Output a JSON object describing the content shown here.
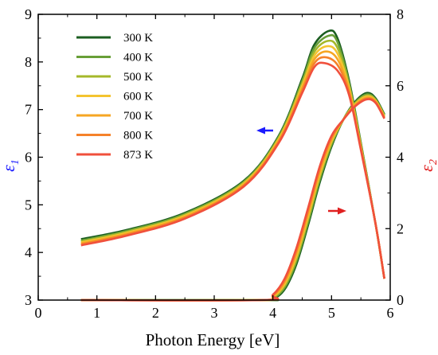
{
  "chart_data": {
    "type": "line",
    "xlabel": "Photon Energy [eV]",
    "ylabel_left": "ε1",
    "ylabel_right": "ε2",
    "ylabel_left_color": "#1a1aff",
    "ylabel_right_color": "#e02020",
    "xlim": [
      0,
      6
    ],
    "ylim_left": [
      3,
      9
    ],
    "ylim_right": [
      0,
      8
    ],
    "xticks": [
      "0",
      "1",
      "2",
      "3",
      "4",
      "5",
      "6"
    ],
    "yticks_left": [
      "3",
      "4",
      "5",
      "6",
      "7",
      "8",
      "9"
    ],
    "yticks_right": [
      "0",
      "2",
      "4",
      "6",
      "8"
    ],
    "grid": false,
    "legend_position": "top-left",
    "left_arrow_color": "#1a1aff",
    "right_arrow_color": "#e02020",
    "series": [
      {
        "name": "300 K",
        "color": "#1b5e20",
        "eps1": {
          "x": [
            0.73,
            1.5,
            2.5,
            3.5,
            4.1,
            4.5,
            4.7,
            4.95,
            5.1,
            5.3,
            5.5,
            5.75,
            5.9
          ],
          "y": [
            4.28,
            4.47,
            4.83,
            5.5,
            6.45,
            7.65,
            8.35,
            8.65,
            8.5,
            7.6,
            6.3,
            4.6,
            3.45
          ]
        },
        "eps2": {
          "x": [
            0.73,
            3.8,
            4.0,
            4.2,
            4.4,
            4.6,
            4.8,
            5.0,
            5.2,
            5.4,
            5.6,
            5.75,
            5.9
          ],
          "y": [
            0.0,
            0.0,
            0.03,
            0.3,
            1.0,
            2.1,
            3.3,
            4.3,
            5.05,
            5.55,
            5.8,
            5.65,
            5.2
          ]
        }
      },
      {
        "name": "400 K",
        "color": "#689f38",
        "eps1": {
          "x": [
            0.73,
            1.5,
            2.5,
            3.5,
            4.1,
            4.5,
            4.7,
            4.95,
            5.1,
            5.3,
            5.5,
            5.75,
            5.9
          ],
          "y": [
            4.25,
            4.45,
            4.81,
            5.48,
            6.43,
            7.6,
            8.28,
            8.55,
            8.42,
            7.55,
            6.28,
            4.6,
            3.45
          ]
        },
        "eps2": {
          "x": [
            0.73,
            3.8,
            4.0,
            4.2,
            4.4,
            4.6,
            4.8,
            5.0,
            5.2,
            5.4,
            5.6,
            5.75,
            5.9
          ],
          "y": [
            0.0,
            0.0,
            0.05,
            0.35,
            1.08,
            2.18,
            3.38,
            4.35,
            5.05,
            5.52,
            5.76,
            5.62,
            5.18
          ]
        }
      },
      {
        "name": "500 K",
        "color": "#a5b82a",
        "eps1": {
          "x": [
            0.73,
            1.5,
            2.5,
            3.5,
            4.1,
            4.5,
            4.7,
            4.93,
            5.1,
            5.3,
            5.5,
            5.75,
            5.9
          ],
          "y": [
            4.23,
            4.43,
            4.79,
            5.46,
            6.4,
            7.55,
            8.2,
            8.44,
            8.3,
            7.5,
            6.25,
            4.6,
            3.45
          ]
        },
        "eps2": {
          "x": [
            0.73,
            3.8,
            4.0,
            4.2,
            4.4,
            4.6,
            4.8,
            5.0,
            5.2,
            5.4,
            5.6,
            5.75,
            5.9
          ],
          "y": [
            0.0,
            0.0,
            0.07,
            0.4,
            1.15,
            2.26,
            3.45,
            4.4,
            5.05,
            5.5,
            5.73,
            5.6,
            5.16
          ]
        }
      },
      {
        "name": "600 K",
        "color": "#f4c430",
        "eps1": {
          "x": [
            0.73,
            1.5,
            2.5,
            3.5,
            4.1,
            4.5,
            4.7,
            4.92,
            5.1,
            5.3,
            5.5,
            5.75,
            5.9
          ],
          "y": [
            4.21,
            4.41,
            4.77,
            5.44,
            6.38,
            7.5,
            8.12,
            8.33,
            8.18,
            7.45,
            6.22,
            4.6,
            3.45
          ]
        },
        "eps2": {
          "x": [
            0.73,
            3.8,
            4.0,
            4.2,
            4.4,
            4.6,
            4.8,
            5.0,
            5.2,
            5.4,
            5.6,
            5.75,
            5.9
          ],
          "y": [
            0.0,
            0.0,
            0.09,
            0.45,
            1.22,
            2.34,
            3.52,
            4.45,
            5.05,
            5.48,
            5.7,
            5.58,
            5.14
          ]
        }
      },
      {
        "name": "700 K",
        "color": "#f6a623",
        "eps1": {
          "x": [
            0.73,
            1.5,
            2.5,
            3.5,
            4.1,
            4.5,
            4.7,
            4.9,
            5.1,
            5.3,
            5.5,
            5.75,
            5.9
          ],
          "y": [
            4.19,
            4.39,
            4.75,
            5.42,
            6.35,
            7.45,
            8.04,
            8.22,
            8.06,
            7.4,
            6.2,
            4.6,
            3.45
          ]
        },
        "eps2": {
          "x": [
            0.73,
            3.8,
            4.0,
            4.2,
            4.4,
            4.6,
            4.8,
            5.0,
            5.2,
            5.4,
            5.6,
            5.75,
            5.9
          ],
          "y": [
            0.0,
            0.0,
            0.11,
            0.5,
            1.3,
            2.42,
            3.6,
            4.5,
            5.05,
            5.46,
            5.67,
            5.56,
            5.12
          ]
        }
      },
      {
        "name": "800 K",
        "color": "#f5822a",
        "eps1": {
          "x": [
            0.73,
            1.5,
            2.5,
            3.5,
            4.1,
            4.5,
            4.7,
            4.88,
            5.1,
            5.3,
            5.5,
            5.75,
            5.9
          ],
          "y": [
            4.17,
            4.37,
            4.73,
            5.4,
            6.33,
            7.4,
            7.96,
            8.1,
            7.94,
            7.35,
            6.18,
            4.6,
            3.45
          ]
        },
        "eps2": {
          "x": [
            0.73,
            3.8,
            4.0,
            4.2,
            4.4,
            4.6,
            4.8,
            5.0,
            5.2,
            5.4,
            5.6,
            5.75,
            5.9
          ],
          "y": [
            0.0,
            0.0,
            0.13,
            0.55,
            1.38,
            2.5,
            3.68,
            4.55,
            5.05,
            5.44,
            5.64,
            5.54,
            5.1
          ]
        }
      },
      {
        "name": "873 K",
        "color": "#f0503c",
        "eps1": {
          "x": [
            0.73,
            1.5,
            2.5,
            3.5,
            4.1,
            4.5,
            4.7,
            4.86,
            5.1,
            5.3,
            5.5,
            5.75,
            5.9
          ],
          "y": [
            4.15,
            4.35,
            4.71,
            5.38,
            6.3,
            7.35,
            7.88,
            7.98,
            7.82,
            7.3,
            6.15,
            4.6,
            3.45
          ]
        },
        "eps2": {
          "x": [
            0.73,
            3.8,
            4.0,
            4.2,
            4.4,
            4.6,
            4.8,
            5.0,
            5.2,
            5.4,
            5.6,
            5.75,
            5.9
          ],
          "y": [
            0.0,
            0.0,
            0.15,
            0.6,
            1.45,
            2.58,
            3.75,
            4.6,
            5.05,
            5.42,
            5.62,
            5.52,
            5.08
          ]
        }
      }
    ]
  }
}
